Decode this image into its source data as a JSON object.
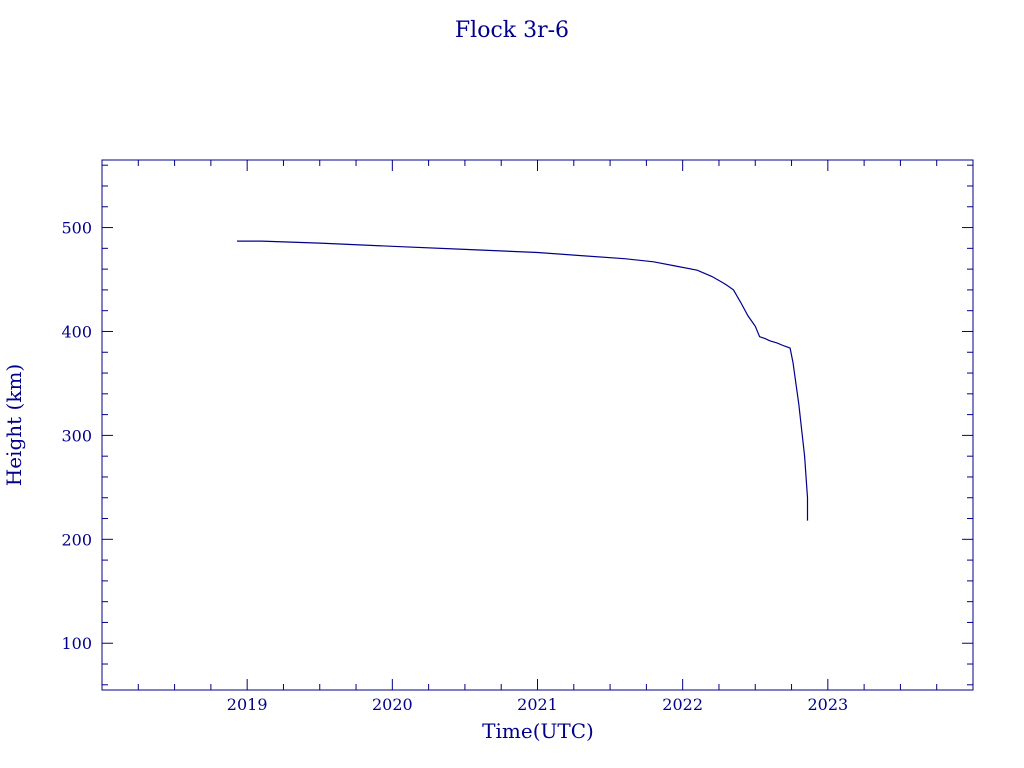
{
  "colors": {
    "ink": "#00008b",
    "background": "#ffffff"
  },
  "chart_data": {
    "type": "line",
    "title": "Flock 3r-6",
    "xlabel": "Time(UTC)",
    "ylabel": "Height (km)",
    "xlim": [
      2018.0,
      2024.0
    ],
    "ylim": [
      55,
      565
    ],
    "xticks": [
      2019,
      2020,
      2021,
      2022,
      2023
    ],
    "yticks": [
      100,
      200,
      300,
      400,
      500
    ],
    "x_tick_labels": [
      "2019",
      "2020",
      "2021",
      "2022",
      "2023"
    ],
    "y_tick_labels": [
      "100",
      "200",
      "300",
      "400",
      "500"
    ],
    "grid": false,
    "legend": "none",
    "series": [
      {
        "x": [
          2018.93,
          2019.1,
          2019.5,
          2020.0,
          2020.5,
          2021.0,
          2021.3,
          2021.6,
          2021.8,
          2021.95,
          2022.1,
          2022.2,
          2022.25,
          2022.3,
          2022.35,
          2022.4,
          2022.45,
          2022.5,
          2022.53,
          2022.57,
          2022.6,
          2022.65,
          2022.7,
          2022.74,
          2022.76,
          2022.78,
          2022.8,
          2022.82,
          2022.84,
          2022.86,
          2022.86
        ],
        "y": [
          487,
          487,
          485,
          482,
          479,
          476,
          473,
          470,
          467,
          463,
          459,
          453,
          449,
          445,
          440,
          428,
          415,
          405,
          395,
          393,
          391,
          389,
          386,
          384,
          370,
          350,
          330,
          305,
          280,
          240,
          218
        ]
      }
    ]
  }
}
